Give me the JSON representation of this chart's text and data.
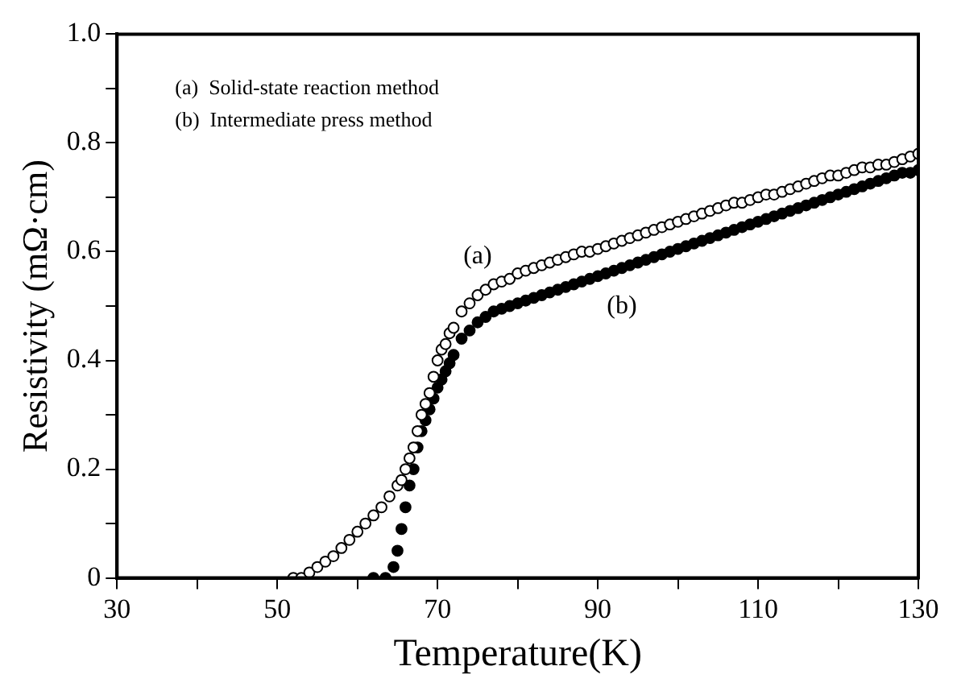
{
  "chart_data": {
    "type": "scatter",
    "xlabel": "Temperature(K)",
    "ylabel": "Resistivity (mΩ·cm)",
    "xlim": [
      30,
      130
    ],
    "ylim": [
      0,
      1.0
    ],
    "xticks": [
      30,
      {
        "value": 40,
        "label": null
      },
      50,
      {
        "value": 60,
        "label": null
      },
      70,
      {
        "value": 80,
        "label": null
      },
      90,
      {
        "value": 100,
        "label": null
      },
      110,
      {
        "value": 120,
        "label": null
      },
      130
    ],
    "yticks": [
      0,
      {
        "value": 0.1,
        "label": null
      },
      0.2,
      {
        "value": 0.3,
        "label": null
      },
      0.4,
      {
        "value": 0.5,
        "label": null
      },
      0.6,
      {
        "value": 0.7,
        "label": null
      },
      0.8,
      {
        "value": 0.9,
        "label": null
      },
      {
        "value": 1.0,
        "label": "1.0"
      }
    ],
    "marker": "circle",
    "grid": false,
    "series": [
      {
        "name": "(a)",
        "color": "#ffffff",
        "x": [
          52,
          53,
          54,
          55,
          56,
          57,
          58,
          59,
          60,
          61,
          62,
          63,
          64,
          65,
          65.5,
          66,
          66.5,
          67,
          67.5,
          68,
          68.5,
          69,
          69.5,
          70,
          70.5,
          71,
          71.5,
          72,
          73,
          74,
          75,
          76,
          77,
          78,
          79,
          80,
          81,
          82,
          83,
          84,
          85,
          86,
          87,
          88,
          89,
          90,
          91,
          92,
          93,
          94,
          95,
          96,
          97,
          98,
          99,
          100,
          101,
          102,
          103,
          104,
          105,
          106,
          107,
          108,
          109,
          110,
          111,
          112,
          113,
          114,
          115,
          116,
          117,
          118,
          119,
          120,
          121,
          122,
          123,
          124,
          125,
          126,
          127,
          128,
          129,
          130
        ],
        "values": [
          0,
          0,
          0.01,
          0.02,
          0.03,
          0.04,
          0.055,
          0.07,
          0.085,
          0.1,
          0.115,
          0.13,
          0.15,
          0.17,
          0.18,
          0.2,
          0.22,
          0.24,
          0.27,
          0.3,
          0.32,
          0.34,
          0.37,
          0.4,
          0.42,
          0.43,
          0.45,
          0.46,
          0.49,
          0.505,
          0.52,
          0.53,
          0.54,
          0.545,
          0.55,
          0.56,
          0.565,
          0.57,
          0.575,
          0.58,
          0.585,
          0.59,
          0.595,
          0.6,
          0.6,
          0.605,
          0.61,
          0.615,
          0.62,
          0.625,
          0.63,
          0.635,
          0.64,
          0.645,
          0.65,
          0.655,
          0.66,
          0.665,
          0.67,
          0.675,
          0.68,
          0.685,
          0.69,
          0.69,
          0.695,
          0.7,
          0.705,
          0.705,
          0.71,
          0.715,
          0.72,
          0.725,
          0.73,
          0.735,
          0.74,
          0.74,
          0.745,
          0.75,
          0.755,
          0.755,
          0.76,
          0.76,
          0.765,
          0.77,
          0.775,
          0.78
        ]
      },
      {
        "name": "(b)",
        "color": "#000000",
        "x": [
          62,
          63.5,
          64.5,
          65,
          65.5,
          66,
          66.5,
          67,
          67.5,
          68,
          68.5,
          69,
          69.5,
          70,
          70.5,
          71,
          71.5,
          72,
          73,
          74,
          75,
          76,
          77,
          78,
          79,
          80,
          81,
          82,
          83,
          84,
          85,
          86,
          87,
          88,
          89,
          90,
          91,
          92,
          93,
          94,
          95,
          96,
          97,
          98,
          99,
          100,
          101,
          102,
          103,
          104,
          105,
          106,
          107,
          108,
          109,
          110,
          111,
          112,
          113,
          114,
          115,
          116,
          117,
          118,
          119,
          120,
          121,
          122,
          123,
          124,
          125,
          126,
          127,
          128,
          129,
          130
        ],
        "values": [
          0,
          0,
          0.02,
          0.05,
          0.09,
          0.13,
          0.17,
          0.2,
          0.24,
          0.27,
          0.29,
          0.31,
          0.33,
          0.35,
          0.365,
          0.38,
          0.395,
          0.41,
          0.44,
          0.455,
          0.47,
          0.48,
          0.49,
          0.495,
          0.5,
          0.505,
          0.51,
          0.515,
          0.52,
          0.525,
          0.53,
          0.535,
          0.54,
          0.545,
          0.55,
          0.555,
          0.56,
          0.565,
          0.57,
          0.575,
          0.58,
          0.585,
          0.59,
          0.595,
          0.6,
          0.605,
          0.61,
          0.615,
          0.62,
          0.625,
          0.63,
          0.635,
          0.64,
          0.645,
          0.65,
          0.655,
          0.66,
          0.665,
          0.67,
          0.675,
          0.68,
          0.685,
          0.69,
          0.695,
          0.7,
          0.705,
          0.71,
          0.715,
          0.72,
          0.725,
          0.73,
          0.735,
          0.74,
          0.745,
          0.745,
          0.75
        ]
      }
    ],
    "annotations": [
      "(a)  Solid-state reaction method",
      "(b)  Intermediate press method"
    ]
  }
}
